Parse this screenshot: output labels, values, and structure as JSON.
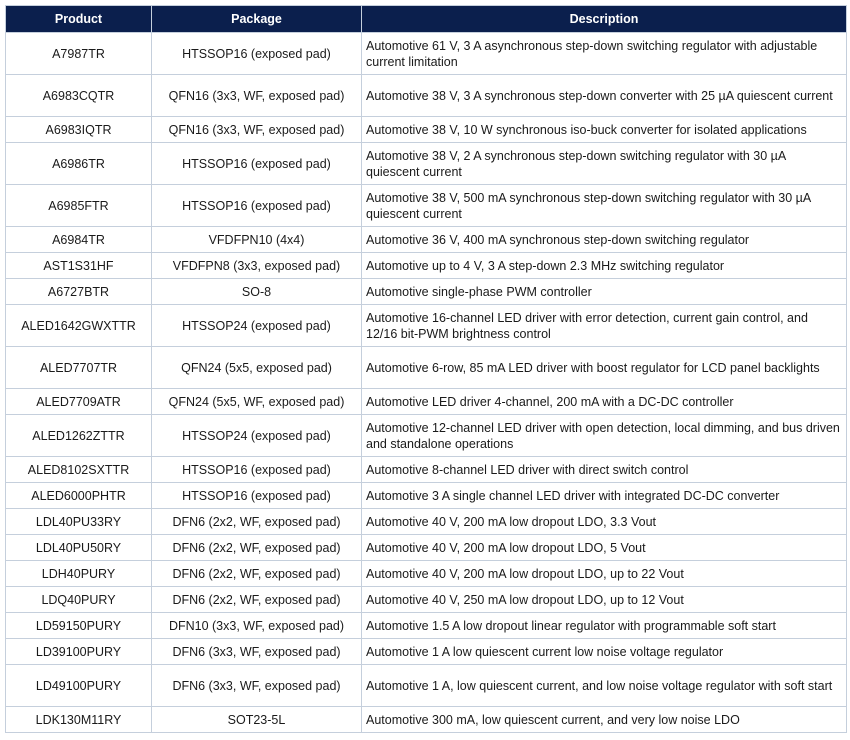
{
  "header": {
    "product": "Product",
    "package": "Package",
    "description": "Description"
  },
  "colors": {
    "header_bg": "#0b1f4d",
    "header_text": "#ffffff",
    "border": "#c5cfdc"
  },
  "rows": [
    {
      "product": "A7987TR",
      "package": "HTSSOP16 (exposed pad)",
      "description": "Automotive 61 V, 3 A asynchronous step-down switching regulator with adjustable current limitation"
    },
    {
      "product": "A6983CQTR",
      "package": "QFN16 (3x3, WF, exposed pad)",
      "description": "Automotive 38 V, 3 A synchronous step-down converter with 25 µA quiescent current"
    },
    {
      "product": "A6983IQTR",
      "package": "QFN16 (3x3, WF, exposed pad)",
      "description": "Automotive 38 V, 10 W synchronous iso-buck converter for isolated applications"
    },
    {
      "product": "A6986TR",
      "package": "HTSSOP16 (exposed pad)",
      "description": "Automotive 38 V, 2 A synchronous step-down switching regulator with 30 µA quiescent current"
    },
    {
      "product": "A6985FTR",
      "package": "HTSSOP16 (exposed pad)",
      "description": "Automotive 38 V, 500 mA synchronous step-down switching regulator with 30 µA quiescent current"
    },
    {
      "product": "A6984TR",
      "package": "VFDFPN10 (4x4)",
      "description": "Automotive 36 V, 400 mA synchronous step-down switching regulator"
    },
    {
      "product": "AST1S31HF",
      "package": "VFDFPN8 (3x3, exposed pad)",
      "description": "Automotive up to 4 V, 3 A step-down 2.3 MHz switching regulator"
    },
    {
      "product": "A6727BTR",
      "package": "SO-8",
      "description": "Automotive single-phase PWM controller"
    },
    {
      "product": "ALED1642GWXTTR",
      "package": "HTSSOP24 (exposed pad)",
      "description": "Automotive 16-channel LED driver with error detection, current gain control, and 12/16 bit-PWM brightness control"
    },
    {
      "product": "ALED7707TR",
      "package": "QFN24 (5x5, exposed pad)",
      "description": "Automotive 6-row, 85 mA LED driver with boost regulator for LCD panel backlights"
    },
    {
      "product": "ALED7709ATR",
      "package": "QFN24 (5x5, WF, exposed pad)",
      "description": "Automotive LED driver 4-channel, 200 mA with a DC-DC controller"
    },
    {
      "product": "ALED1262ZTTR",
      "package": "HTSSOP24 (exposed pad)",
      "description": "Automotive 12-channel LED driver with open detection, local dimming, and bus driven and standalone operations"
    },
    {
      "product": "ALED8102SXTTR",
      "package": "HTSSOP16 (exposed pad)",
      "description": "Automotive 8-channel LED driver with direct switch control"
    },
    {
      "product": "ALED6000PHTR",
      "package": "HTSSOP16 (exposed pad)",
      "description": "Automotive 3 A single channel LED driver with integrated DC-DC converter"
    },
    {
      "product": "LDL40PU33RY",
      "package": "DFN6 (2x2, WF, exposed pad)",
      "description": "Automotive 40 V, 200 mA low dropout LDO, 3.3 Vout"
    },
    {
      "product": "LDL40PU50RY",
      "package": "DFN6 (2x2, WF, exposed pad)",
      "description": "Automotive 40 V, 200 mA low dropout LDO, 5 Vout"
    },
    {
      "product": "LDH40PURY",
      "package": "DFN6 (2x2, WF, exposed pad)",
      "description": "Automotive 40 V, 200 mA low dropout LDO, up to 22 Vout"
    },
    {
      "product": "LDQ40PURY",
      "package": "DFN6 (2x2, WF, exposed pad)",
      "description": "Automotive 40 V, 250 mA low dropout LDO, up to 12 Vout"
    },
    {
      "product": "LD59150PURY",
      "package": "DFN10 (3x3, WF, exposed pad)",
      "description": "Automotive 1.5 A low dropout linear regulator with programmable soft start"
    },
    {
      "product": "LD39100PURY",
      "package": "DFN6 (3x3, WF, exposed pad)",
      "description": "Automotive 1 A low quiescent current low noise voltage regulator"
    },
    {
      "product": "LD49100PURY",
      "package": "DFN6 (3x3, WF, exposed pad)",
      "description": "Automotive 1 A, low quiescent current, and low noise voltage regulator with soft start"
    },
    {
      "product": "LDK130M11RY",
      "package": "SOT23-5L",
      "description": "Automotive 300 mA, low quiescent current, and very low noise LDO"
    }
  ]
}
